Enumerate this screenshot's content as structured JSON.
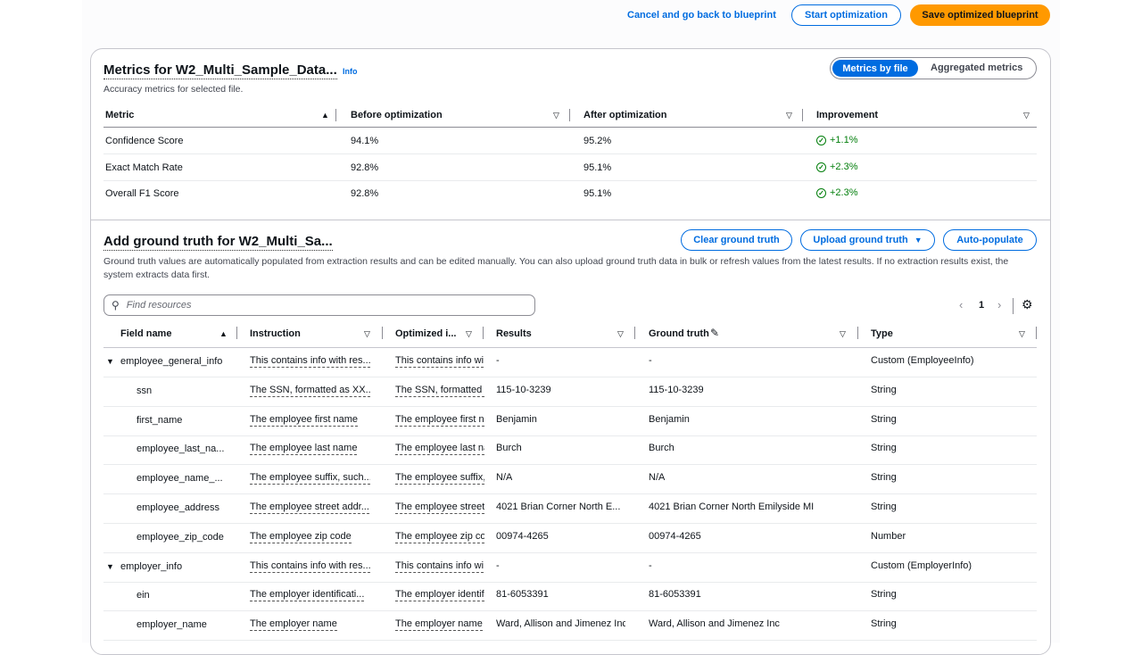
{
  "header": {
    "cancel": "Cancel and go back to blueprint",
    "start": "Start optimization",
    "save": "Save optimized blueprint"
  },
  "metrics": {
    "title": "Metrics for W2_Multi_Sample_Data...",
    "info": "Info",
    "subtitle": "Accuracy metrics for selected file.",
    "toggle": [
      "Metrics by file",
      "Aggregated metrics"
    ],
    "columns": [
      "Metric",
      "Before optimization",
      "After optimization",
      "Improvement"
    ],
    "rows": [
      [
        "Confidence Score",
        "94.1%",
        "95.2%",
        "+1.1%"
      ],
      [
        "Exact Match Rate",
        "92.8%",
        "95.1%",
        "+2.3%"
      ],
      [
        "Overall F1 Score",
        "92.8%",
        "95.1%",
        "+2.3%"
      ]
    ]
  },
  "ground": {
    "title": "Add ground truth for W2_Multi_Sa...",
    "clear": "Clear ground truth",
    "upload": "Upload ground truth",
    "auto": "Auto-populate",
    "description": "Ground truth values are automatically populated from extraction results and can be edited manually. You can also upload ground truth data in bulk or refresh values from the latest results. If no extraction results exist, the system extracts data first.",
    "search_placeholder": "Find resources",
    "page": "1",
    "columns": [
      "Field name",
      "Instruction",
      "Optimized i...",
      "Results",
      "Ground truth",
      "Type"
    ],
    "rows": [
      [
        "employee_general_info",
        "This contains info with res...",
        "This contains info wi",
        "-",
        "-",
        "Custom (EmployeeInfo)",
        true
      ],
      [
        "ssn",
        "The SSN, formatted as XX...",
        "The SSN, formatted a",
        "115-10-3239",
        "115-10-3239",
        "String",
        false
      ],
      [
        "first_name",
        "The employee first name",
        "The employee first n",
        "Benjamin",
        "Benjamin",
        "String",
        false
      ],
      [
        "employee_last_na...",
        "The employee last name",
        "The employee last na",
        "Burch",
        "Burch",
        "String",
        false
      ],
      [
        "employee_name_...",
        "The employee suffix, such...",
        "The employee suffix,",
        "N/A",
        "N/A",
        "String",
        false
      ],
      [
        "employee_address",
        "The employee street addr...",
        "The employee street",
        "4021 Brian Corner North E...",
        "4021 Brian Corner North Emilyside MI",
        "String",
        false
      ],
      [
        "employee_zip_code",
        "The employee zip code",
        "The employee zip co",
        "00974-4265",
        "00974-4265",
        "Number",
        false
      ],
      [
        "employer_info",
        "This contains info with res...",
        "This contains info wi",
        "-",
        "-",
        "Custom (EmployerInfo)",
        true
      ],
      [
        "ein",
        "The employer identificati...",
        "The employer identif",
        "81-6053391",
        "81-6053391",
        "String",
        false
      ],
      [
        "employer_name",
        "The employer name",
        "The employer name",
        "Ward, Allison and Jimenez Inc",
        "Ward, Allison and Jimenez Inc",
        "String",
        false
      ]
    ]
  }
}
